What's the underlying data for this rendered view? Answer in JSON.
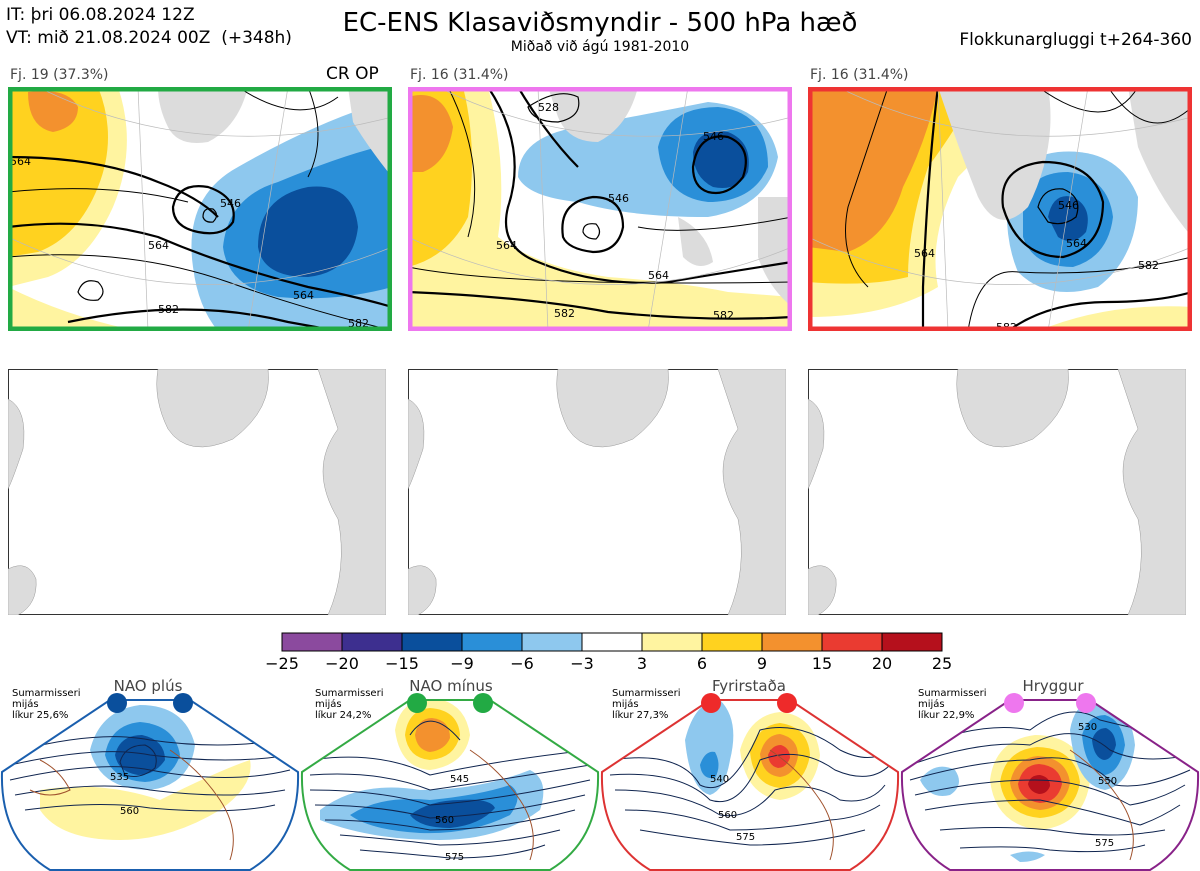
{
  "header": {
    "it_line": "IT: þri 06.08.2024 12Z",
    "vt_line": "VT: mið 21.08.2024 00Z  (+348h)",
    "title": "EC-ENS Klasaviðsmyndir - 500 hPa hæð",
    "subtitle": "Miðað við ágú 1981-2010",
    "window": "Flokkunargluggi t+264-360"
  },
  "clusters": [
    {
      "label": "Fj. 19 (37.3%)",
      "border": "#22aa44",
      "tag": "CR OP",
      "contours": [
        {
          "v": "564"
        },
        {
          "v": "546"
        },
        {
          "v": "564"
        },
        {
          "v": "582"
        },
        {
          "v": "564"
        },
        {
          "v": "582"
        }
      ]
    },
    {
      "label": "Fj. 16 (31.4%)",
      "border": "#ee77ee",
      "tag": "",
      "contours": [
        {
          "v": "528"
        },
        {
          "v": "546"
        },
        {
          "v": "546"
        },
        {
          "v": "564"
        },
        {
          "v": "564"
        },
        {
          "v": "582"
        },
        {
          "v": "582"
        }
      ]
    },
    {
      "label": "Fj. 16 (31.4%)",
      "border": "#ee3333",
      "tag": "",
      "contours": [
        {
          "v": "546"
        },
        {
          "v": "564"
        },
        {
          "v": "564"
        },
        {
          "v": "582"
        },
        {
          "v": "582"
        }
      ]
    }
  ],
  "chart_data": {
    "type": "heatmap",
    "colorbar": {
      "ticks": [
        "−25",
        "−20",
        "−15",
        "−9",
        "−6",
        "−3",
        "3",
        "6",
        "9",
        "15",
        "20",
        "25"
      ],
      "colors": [
        "#8b4a9e",
        "#3d2f8f",
        "#0a4f9c",
        "#2a8fd8",
        "#8ec8ee",
        "#ffffff",
        "#fff4a0",
        "#ffd21f",
        "#f3912e",
        "#ea3b31",
        "#b5101c"
      ]
    },
    "regimes": [
      {
        "name": "NAO plús",
        "stat": "Sumarmisseri\nmijás\nlíkur 25,6%",
        "dot": "#0a4f9c",
        "border": "#1a5fae",
        "contours": [
          "535",
          "560"
        ]
      },
      {
        "name": "NAO mínus",
        "stat": "Sumarmisseri\nmijás\nlíkur 24,2%",
        "dot": "#22aa44",
        "border": "#33aa44",
        "contours": [
          "545",
          "560",
          "575"
        ]
      },
      {
        "name": "Fyrirstaða",
        "stat": "Sumarmisseri\nmijás\nlíkur 27,3%",
        "dot": "#ee2a2a",
        "border": "#dd3333",
        "contours": [
          "540",
          "560",
          "575"
        ]
      },
      {
        "name": "Hryggur",
        "stat": "Sumarmisseri\nmijás\nlíkur 22,9%",
        "dot": "#ee77ee",
        "border": "#882288",
        "contours": [
          "530",
          "550",
          "575"
        ]
      }
    ]
  }
}
